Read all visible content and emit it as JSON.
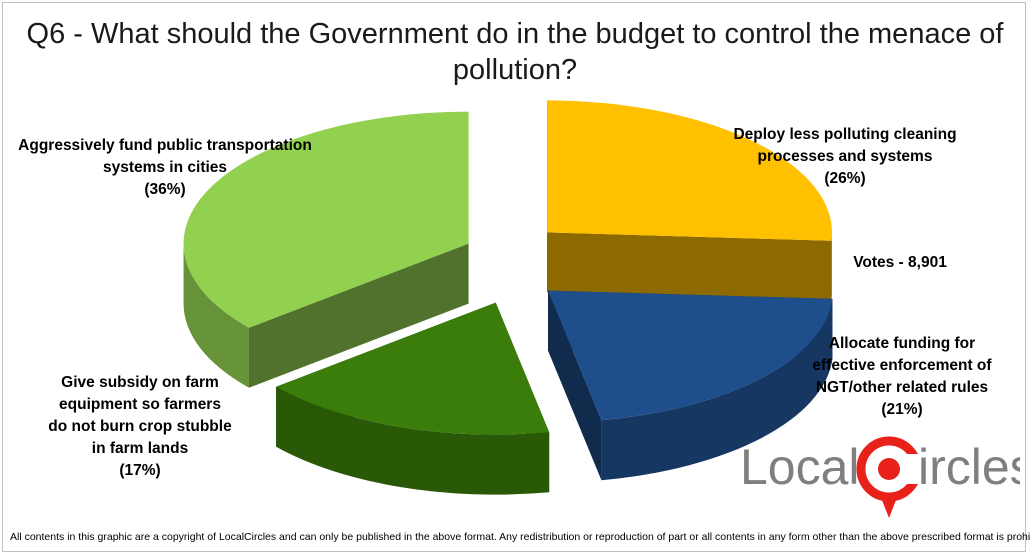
{
  "chart_data": {
    "type": "pie",
    "title": "Q6 - What should the Government do in the budget to control the menace of pollution?",
    "slices": [
      {
        "label_lines": [
          "Deploy less polluting cleaning",
          "processes and systems"
        ],
        "percent_text": "(26%)",
        "value": 26,
        "color": "#ffc000"
      },
      {
        "label_lines": [
          "Allocate funding for",
          "effective enforcement of",
          "NGT/other related rules"
        ],
        "percent_text": "(21%)",
        "value": 21,
        "color": "#1f4e8c"
      },
      {
        "label_lines": [
          "Give subsidy on farm",
          "equipment so farmers",
          "do not burn crop stubble",
          "in farm lands"
        ],
        "percent_text": "(17%)",
        "value": 17,
        "color": "#3a7d0a"
      },
      {
        "label_lines": [
          "Aggressively  fund public transportation",
          "systems in cities"
        ],
        "percent_text": "(36%)",
        "value": 36,
        "color": "#92d050"
      }
    ],
    "votes": "Votes - 8,901",
    "legend": "none"
  },
  "logo": {
    "text_left": "Local",
    "text_right": "ircles",
    "color": "#7f7f7f",
    "accent": "#e8221b"
  },
  "footer": "All contents in this graphic are a copyright of LocalCircles and can only be published in the above format. Any redistribution or reproduction of part or all contents in any form other than the above prescribed format is prohibited."
}
